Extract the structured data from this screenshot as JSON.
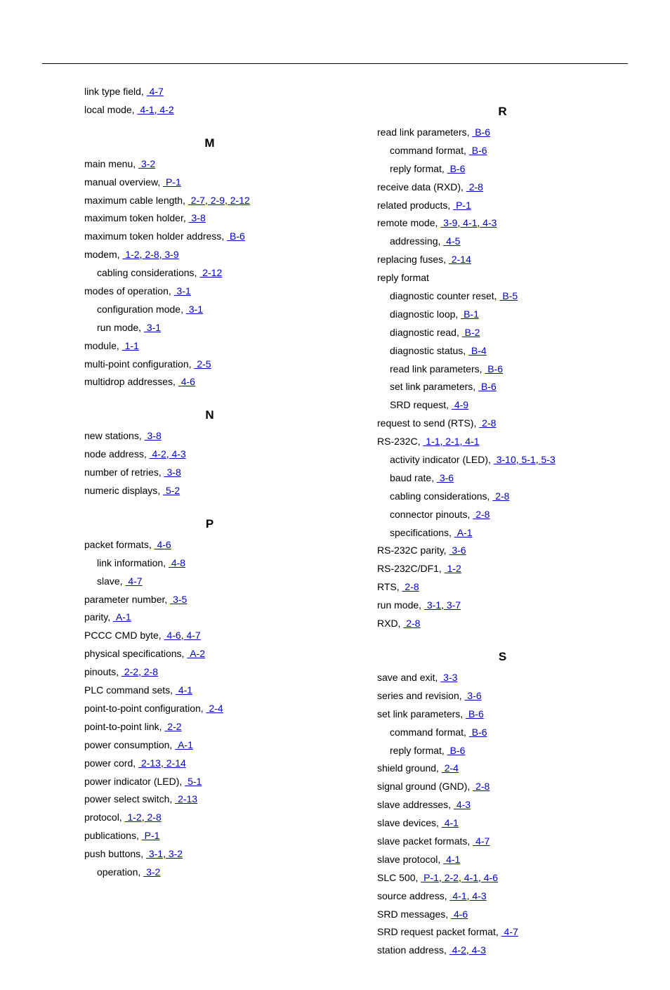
{
  "left": {
    "top": [
      {
        "term": "link type field,",
        "refs": [
          "4-7"
        ]
      },
      {
        "term": "local mode,",
        "refs": [
          "4-1",
          "4-2"
        ]
      }
    ],
    "sections": [
      {
        "letter": "M",
        "entries": [
          {
            "term": "main menu,",
            "refs": [
              "3-2"
            ]
          },
          {
            "term": "manual overview,",
            "refs": [
              "P-1"
            ]
          },
          {
            "term": "maximum cable length,",
            "refs": [
              "2-7",
              "2-9",
              "2-12"
            ]
          },
          {
            "term": "maximum token holder,",
            "refs": [
              "3-8"
            ]
          },
          {
            "term": "maximum token holder address,",
            "refs": [
              "B-6"
            ]
          },
          {
            "term": "modem,",
            "refs": [
              "1-2",
              "2-8",
              "3-9"
            ],
            "subs": [
              {
                "term": "cabling considerations,",
                "refs": [
                  "2-12"
                ]
              }
            ]
          },
          {
            "term": "modes of operation,",
            "refs": [
              "3-1"
            ],
            "subs": [
              {
                "term": "configuration mode,",
                "refs": [
                  "3-1"
                ]
              },
              {
                "term": "run mode,",
                "refs": [
                  "3-1"
                ]
              }
            ]
          },
          {
            "term": "module,",
            "refs": [
              "1-1"
            ]
          },
          {
            "term": "multi-point configuration,",
            "refs": [
              "2-5"
            ]
          },
          {
            "term": "multidrop addresses,",
            "refs": [
              "4-6"
            ]
          }
        ]
      },
      {
        "letter": "N",
        "entries": [
          {
            "term": "new stations,",
            "refs": [
              "3-8"
            ]
          },
          {
            "term": "node address,",
            "refs": [
              "4-2",
              "4-3"
            ]
          },
          {
            "term": "number of retries,",
            "refs": [
              "3-8"
            ]
          },
          {
            "term": "numeric displays,",
            "refs": [
              "5-2"
            ]
          }
        ]
      },
      {
        "letter": "P",
        "entries": [
          {
            "term": "packet formats,",
            "refs": [
              "4-6"
            ],
            "subs": [
              {
                "term": "link information,",
                "refs": [
                  "4-8"
                ]
              },
              {
                "term": "slave,",
                "refs": [
                  "4-7"
                ]
              }
            ]
          },
          {
            "term": "parameter number,",
            "refs": [
              "3-5"
            ]
          },
          {
            "term": "parity,",
            "refs": [
              "A-1"
            ]
          },
          {
            "term": "PCCC CMD byte,",
            "refs": [
              "4-6",
              "4-7"
            ]
          },
          {
            "term": "physical specifications,",
            "refs": [
              "A-2"
            ]
          },
          {
            "term": "pinouts,",
            "refs": [
              "2-2",
              "2-8"
            ]
          },
          {
            "term": "PLC command sets,",
            "refs": [
              "4-1"
            ]
          },
          {
            "term": "point-to-point configuration,",
            "refs": [
              "2-4"
            ]
          },
          {
            "term": "point-to-point link,",
            "refs": [
              "2-2"
            ]
          },
          {
            "term": "power consumption,",
            "refs": [
              "A-1"
            ]
          },
          {
            "term": "power cord,",
            "refs": [
              "2-13",
              "2-14"
            ]
          },
          {
            "term": "power indicator (LED),",
            "refs": [
              "5-1"
            ]
          },
          {
            "term": "power select switch,",
            "refs": [
              "2-13"
            ]
          },
          {
            "term": "protocol,",
            "refs": [
              "1-2",
              "2-8"
            ]
          },
          {
            "term": "publications,",
            "refs": [
              "P-1"
            ]
          },
          {
            "term": "push buttons,",
            "refs": [
              "3-1",
              "3-2"
            ],
            "subs": [
              {
                "term": "operation,",
                "refs": [
                  "3-2"
                ]
              }
            ]
          }
        ]
      }
    ]
  },
  "right": {
    "sections": [
      {
        "letter": "R",
        "entries": [
          {
            "term": "read link parameters,",
            "refs": [
              "B-6"
            ],
            "subs": [
              {
                "term": "command format,",
                "refs": [
                  "B-6"
                ]
              },
              {
                "term": "reply format,",
                "refs": [
                  "B-6"
                ]
              }
            ]
          },
          {
            "term": "receive data (RXD),",
            "refs": [
              "2-8"
            ]
          },
          {
            "term": "related products,",
            "refs": [
              "P-1"
            ]
          },
          {
            "term": "remote mode,",
            "refs": [
              "3-9",
              "4-1",
              "4-3"
            ],
            "subs": [
              {
                "term": "addressing,",
                "refs": [
                  "4-5"
                ]
              }
            ]
          },
          {
            "term": "replacing fuses,",
            "refs": [
              "2-14"
            ]
          },
          {
            "term": "reply format",
            "refs": [],
            "subs": [
              {
                "term": "diagnostic counter reset,",
                "refs": [
                  "B-5"
                ]
              },
              {
                "term": "diagnostic loop,",
                "refs": [
                  "B-1"
                ]
              },
              {
                "term": "diagnostic read,",
                "refs": [
                  "B-2"
                ]
              },
              {
                "term": "diagnostic status,",
                "refs": [
                  "B-4"
                ]
              },
              {
                "term": "read link parameters,",
                "refs": [
                  "B-6"
                ]
              },
              {
                "term": "set link parameters,",
                "refs": [
                  "B-6"
                ]
              },
              {
                "term": "SRD request,",
                "refs": [
                  "4-9"
                ]
              }
            ]
          },
          {
            "term": "request to send (RTS),",
            "refs": [
              "2-8"
            ]
          },
          {
            "term": "RS-232C,",
            "refs": [
              "1-1",
              "2-1",
              "4-1"
            ],
            "subs": [
              {
                "term": "activity indicator (LED),",
                "refs": [
                  "3-10",
                  "5-1",
                  "5-3"
                ]
              },
              {
                "term": "baud rate,",
                "refs": [
                  "3-6"
                ]
              },
              {
                "term": "cabling considerations,",
                "refs": [
                  "2-8"
                ]
              },
              {
                "term": "connector pinouts,",
                "refs": [
                  "2-8"
                ]
              },
              {
                "term": "specifications,",
                "refs": [
                  "A-1"
                ]
              }
            ]
          },
          {
            "term": "RS-232C parity,",
            "refs": [
              "3-6"
            ]
          },
          {
            "term": "RS-232C/DF1,",
            "refs": [
              "1-2"
            ]
          },
          {
            "term": "RTS,",
            "refs": [
              "2-8"
            ]
          },
          {
            "term": "run mode,",
            "refs": [
              "3-1",
              "3-7"
            ]
          },
          {
            "term": "RXD,",
            "refs": [
              "2-8"
            ]
          }
        ]
      },
      {
        "letter": "S",
        "entries": [
          {
            "term": "save and exit,",
            "refs": [
              "3-3"
            ]
          },
          {
            "term": "series and revision,",
            "refs": [
              "3-6"
            ]
          },
          {
            "term": "set link parameters,",
            "refs": [
              "B-6"
            ],
            "subs": [
              {
                "term": "command format,",
                "refs": [
                  "B-6"
                ]
              },
              {
                "term": "reply format,",
                "refs": [
                  "B-6"
                ]
              }
            ]
          },
          {
            "term": "shield ground,",
            "refs": [
              "2-4"
            ]
          },
          {
            "term": "signal ground (GND),",
            "refs": [
              "2-8"
            ]
          },
          {
            "term": "slave addresses,",
            "refs": [
              "4-3"
            ]
          },
          {
            "term": "slave devices,",
            "refs": [
              "4-1"
            ]
          },
          {
            "term": "slave packet formats,",
            "refs": [
              "4-7"
            ]
          },
          {
            "term": "slave protocol,",
            "refs": [
              "4-1"
            ]
          },
          {
            "term": "SLC 500,",
            "refs": [
              "P-1",
              "2-2",
              "4-1",
              "4-6"
            ]
          },
          {
            "term": "source address,",
            "refs": [
              "4-1",
              "4-3"
            ]
          },
          {
            "term": "SRD messages,",
            "refs": [
              "4-6"
            ]
          },
          {
            "term": "SRD request packet format,",
            "refs": [
              "4-7"
            ]
          },
          {
            "term": "station address,",
            "refs": [
              "4-2",
              "4-3"
            ]
          }
        ]
      }
    ]
  }
}
